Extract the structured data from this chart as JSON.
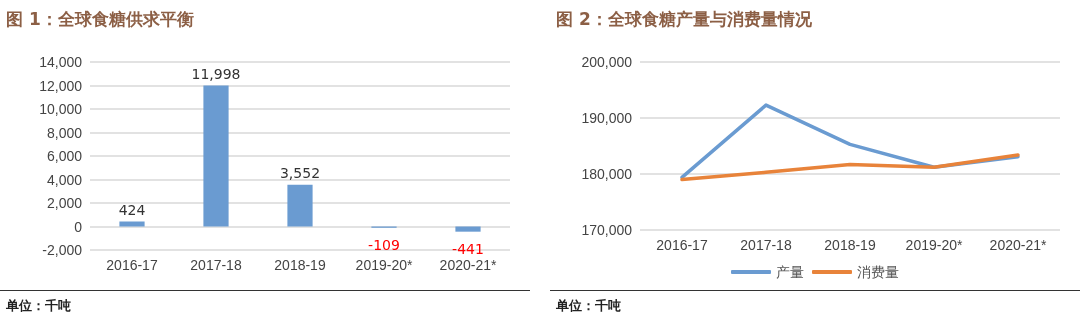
{
  "chart_data": [
    {
      "type": "bar",
      "title": "图 1：全球食糖供求平衡",
      "categories": [
        "2016-17",
        "2017-18",
        "2018-19",
        "2019-20*",
        "2020-21*"
      ],
      "values": [
        424,
        11998,
        3552,
        -109,
        -441
      ],
      "value_labels": [
        "424",
        "11,998",
        "3,552",
        "-109",
        "-441"
      ],
      "color": "#6a9bd1",
      "ylim": [
        -2000,
        14000
      ],
      "yticks": [
        {
          "value": -2000,
          "label": "-2,000"
        },
        0,
        {
          "value": 2000,
          "label": "2,000"
        },
        {
          "value": 4000,
          "label": "4,000"
        },
        {
          "value": 6000,
          "label": "6,000"
        },
        {
          "value": 8000,
          "label": "8,000"
        },
        {
          "value": 10000,
          "label": "10,000"
        },
        {
          "value": 12000,
          "label": "12,000"
        },
        {
          "value": 14000,
          "label": "14,000"
        }
      ],
      "grid": "y",
      "annotations": [
        "单位：千吨"
      ]
    },
    {
      "type": "line",
      "title": "图 2：全球食糖产量与消费量情况",
      "categories": [
        "2016-17",
        "2017-18",
        "2018-19",
        "2019-20*",
        "2020-21*"
      ],
      "series": [
        {
          "name": "产量",
          "color": "#6a9bd1",
          "values": [
            179400,
            192300,
            185300,
            181200,
            183100
          ]
        },
        {
          "name": "消费量",
          "color": "#e8833a",
          "values": [
            179000,
            180300,
            181700,
            181200,
            183400
          ]
        }
      ],
      "ylim": [
        170000,
        200000
      ],
      "yticks": [
        {
          "value": 170000,
          "label": "170,000"
        },
        {
          "value": 180000,
          "label": "180,000"
        },
        {
          "value": 190000,
          "label": "190,000"
        },
        {
          "value": 200000,
          "label": "200,000"
        }
      ],
      "grid": "y",
      "legend": "bottom",
      "marker": "none",
      "line_style": "solid",
      "annotations": [
        "单位：千吨"
      ]
    }
  ]
}
